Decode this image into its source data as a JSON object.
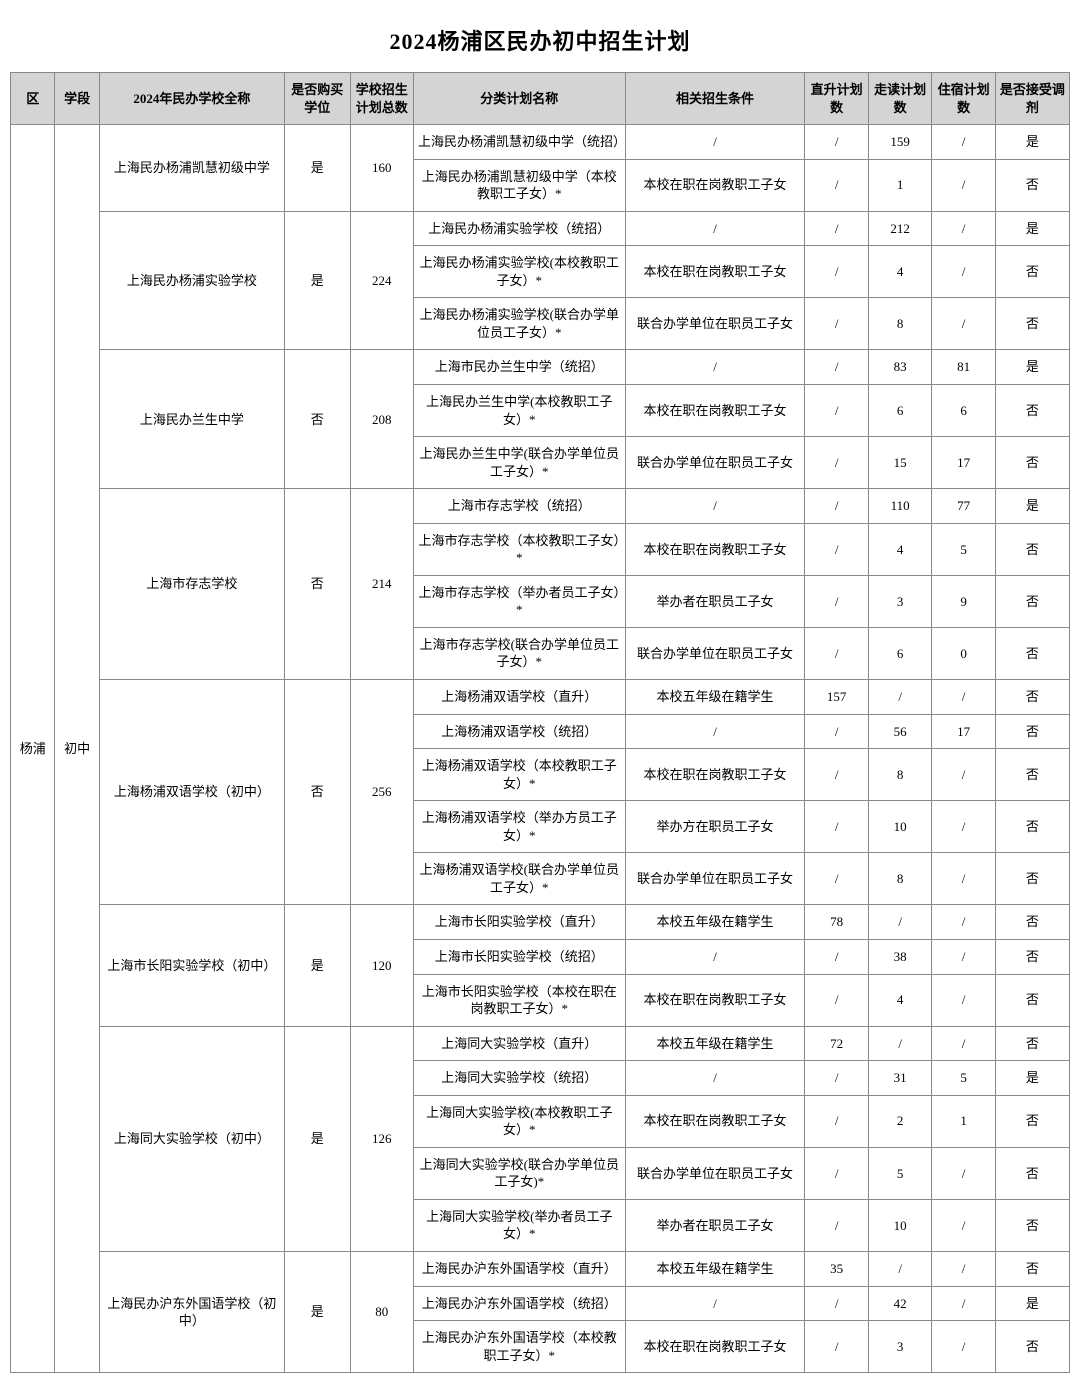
{
  "title": "2024杨浦区民办初中招生计划",
  "headers": {
    "district": "区",
    "level": "学段",
    "school": "2024年民办学校全称",
    "buy": "是否购买学位",
    "total": "学校招生计划总数",
    "planname": "分类计划名称",
    "cond": "相关招生条件",
    "zheng": "直升计划数",
    "zoudu": "走读计划数",
    "zhusu": "住宿计划数",
    "tiaoji": "是否接受调剂"
  },
  "district": "杨浦",
  "level": "初中",
  "schools": [
    {
      "name": "上海民办杨浦凯慧初级中学",
      "buy": "是",
      "total": "160",
      "plans": [
        {
          "pname": "上海民办杨浦凯慧初级中学（统招）",
          "cond": "/",
          "zs": "/",
          "zd": "159",
          "zs2": "/",
          "tj": "是"
        },
        {
          "pname": "上海民办杨浦凯慧初级中学（本校教职工子女）*",
          "cond": "本校在职在岗教职工子女",
          "zs": "/",
          "zd": "1",
          "zs2": "/",
          "tj": "否"
        }
      ]
    },
    {
      "name": "上海民办杨浦实验学校",
      "buy": "是",
      "total": "224",
      "plans": [
        {
          "pname": "上海民办杨浦实验学校（统招）",
          "cond": "/",
          "zs": "/",
          "zd": "212",
          "zs2": "/",
          "tj": "是"
        },
        {
          "pname": "上海民办杨浦实验学校(本校教职工子女）*",
          "cond": "本校在职在岗教职工子女",
          "zs": "/",
          "zd": "4",
          "zs2": "/",
          "tj": "否"
        },
        {
          "pname": "上海民办杨浦实验学校(联合办学单位员工子女）*",
          "cond": "联合办学单位在职员工子女",
          "zs": "/",
          "zd": "8",
          "zs2": "/",
          "tj": "否"
        }
      ]
    },
    {
      "name": "上海民办兰生中学",
      "buy": "否",
      "total": "208",
      "plans": [
        {
          "pname": "上海市民办兰生中学（统招）",
          "cond": "/",
          "zs": "/",
          "zd": "83",
          "zs2": "81",
          "tj": "是"
        },
        {
          "pname": "上海民办兰生中学(本校教职工子女）*",
          "cond": "本校在职在岗教职工子女",
          "zs": "/",
          "zd": "6",
          "zs2": "6",
          "tj": "否"
        },
        {
          "pname": "上海民办兰生中学(联合办学单位员工子女）*",
          "cond": "联合办学单位在职员工子女",
          "zs": "/",
          "zd": "15",
          "zs2": "17",
          "tj": "否"
        }
      ]
    },
    {
      "name": "上海市存志学校",
      "buy": "否",
      "total": "214",
      "plans": [
        {
          "pname": "上海市存志学校（统招）",
          "cond": "/",
          "zs": "/",
          "zd": "110",
          "zs2": "77",
          "tj": "是"
        },
        {
          "pname": "上海市存志学校（本校教职工子女）*",
          "cond": "本校在职在岗教职工子女",
          "zs": "/",
          "zd": "4",
          "zs2": "5",
          "tj": "否"
        },
        {
          "pname": "上海市存志学校（举办者员工子女）*",
          "cond": "举办者在职员工子女",
          "zs": "/",
          "zd": "3",
          "zs2": "9",
          "tj": "否"
        },
        {
          "pname": "上海市存志学校(联合办学单位员工子女）*",
          "cond": "联合办学单位在职员工子女",
          "zs": "/",
          "zd": "6",
          "zs2": "0",
          "tj": "否"
        }
      ]
    },
    {
      "name": "上海杨浦双语学校（初中）",
      "buy": "否",
      "total": "256",
      "plans": [
        {
          "pname": "上海杨浦双语学校（直升）",
          "cond": "本校五年级在籍学生",
          "zs": "157",
          "zd": "/",
          "zs2": "/",
          "tj": "否"
        },
        {
          "pname": "上海杨浦双语学校（统招）",
          "cond": "/",
          "zs": "/",
          "zd": "56",
          "zs2": "17",
          "tj": "否"
        },
        {
          "pname": "上海杨浦双语学校（本校教职工子女）*",
          "cond": "本校在职在岗教职工子女",
          "zs": "/",
          "zd": "8",
          "zs2": "/",
          "tj": "否"
        },
        {
          "pname": "上海杨浦双语学校（举办方员工子女）*",
          "cond": "举办方在职员工子女",
          "zs": "/",
          "zd": "10",
          "zs2": "/",
          "tj": "否"
        },
        {
          "pname": "上海杨浦双语学校(联合办学单位员工子女）*",
          "cond": "联合办学单位在职员工子女",
          "zs": "/",
          "zd": "8",
          "zs2": "/",
          "tj": "否"
        }
      ]
    },
    {
      "name": "上海市长阳实验学校（初中）",
      "buy": "是",
      "total": "120",
      "plans": [
        {
          "pname": "上海市长阳实验学校（直升）",
          "cond": "本校五年级在籍学生",
          "zs": "78",
          "zd": "/",
          "zs2": "/",
          "tj": "否"
        },
        {
          "pname": "上海市长阳实验学校（统招）",
          "cond": "/",
          "zs": "/",
          "zd": "38",
          "zs2": "/",
          "tj": "否"
        },
        {
          "pname": "上海市长阳实验学校（本校在职在岗教职工子女）*",
          "cond": "本校在职在岗教职工子女",
          "zs": "/",
          "zd": "4",
          "zs2": "/",
          "tj": "否"
        }
      ]
    },
    {
      "name": "上海同大实验学校（初中）",
      "buy": "是",
      "total": "126",
      "plans": [
        {
          "pname": "上海同大实验学校（直升）",
          "cond": "本校五年级在籍学生",
          "zs": "72",
          "zd": "/",
          "zs2": "/",
          "tj": "否"
        },
        {
          "pname": "上海同大实验学校（统招）",
          "cond": "/",
          "zs": "/",
          "zd": "31",
          "zs2": "5",
          "tj": "是"
        },
        {
          "pname": "上海同大实验学校(本校教职工子女）*",
          "cond": "本校在职在岗教职工子女",
          "zs": "/",
          "zd": "2",
          "zs2": "1",
          "tj": "否"
        },
        {
          "pname": "上海同大实验学校(联合办学单位员工子女)*",
          "cond": "联合办学单位在职员工子女",
          "zs": "/",
          "zd": "5",
          "zs2": "/",
          "tj": "否"
        },
        {
          "pname": "上海同大实验学校(举办者员工子女）*",
          "cond": "举办者在职员工子女",
          "zs": "/",
          "zd": "10",
          "zs2": "/",
          "tj": "否"
        }
      ]
    },
    {
      "name": "上海民办沪东外国语学校（初中）",
      "buy": "是",
      "total": "80",
      "plans": [
        {
          "pname": "上海民办沪东外国语学校（直升）",
          "cond": "本校五年级在籍学生",
          "zs": "35",
          "zd": "/",
          "zs2": "/",
          "tj": "否"
        },
        {
          "pname": "上海民办沪东外国语学校（统招）",
          "cond": "/",
          "zs": "/",
          "zd": "42",
          "zs2": "/",
          "tj": "是"
        },
        {
          "pname": "上海民办沪东外国语学校（本校教职工子女）*",
          "cond": "本校在职在岗教职工子女",
          "zs": "/",
          "zd": "3",
          "zs2": "/",
          "tj": "否"
        }
      ]
    }
  ],
  "styling": {
    "type": "table",
    "background_color": "#ffffff",
    "header_bg": "#d4d4d4",
    "border_color": "#888888",
    "text_color": "#000000",
    "title_fontsize": 22,
    "cell_fontsize": 13,
    "font_family": "SimSun"
  }
}
